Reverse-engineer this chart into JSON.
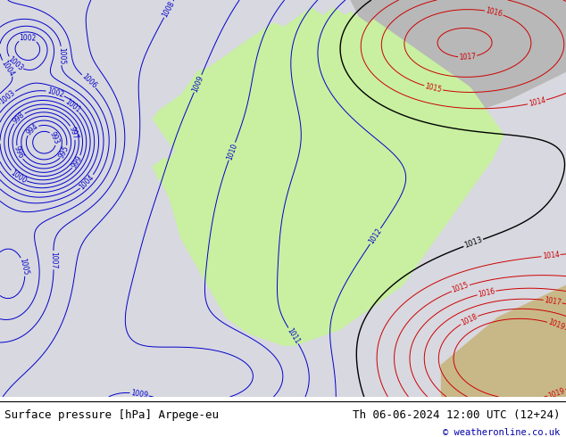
{
  "title_left": "Surface pressure [hPa] Arpege-eu",
  "title_right": "Th 06-06-2024 12:00 UTC (12+24)",
  "copyright": "© weatheronline.co.uk",
  "bg_color": "#d8d8e0",
  "land_color": "#c8f0a0",
  "sea_color": "#d8d8e0",
  "gray_land_color": "#b8b8b8",
  "tan_land_color": "#c8b888",
  "blue_color": "#0000cc",
  "red_color": "#cc0000",
  "black_color": "#000000",
  "fig_width": 6.34,
  "fig_height": 4.9,
  "dpi": 100,
  "font_size_title": 9,
  "font_size_copyright": 7.5
}
